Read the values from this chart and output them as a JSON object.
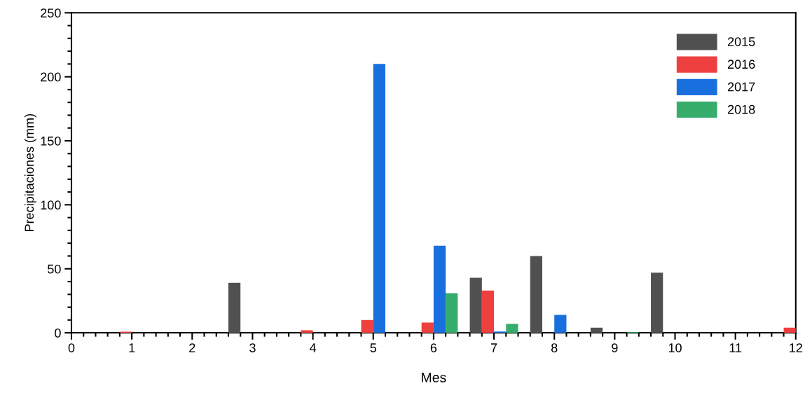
{
  "chart_data": {
    "type": "bar",
    "xlabel": "Mes",
    "ylabel": "Precipitaciones (mm)",
    "x": [
      1,
      2,
      3,
      4,
      5,
      6,
      7,
      8,
      9,
      10,
      11,
      12
    ],
    "series": [
      {
        "name": "2015",
        "color": "#505050",
        "values": [
          0,
          0,
          39,
          0,
          0,
          0,
          43,
          60,
          4,
          47,
          0,
          0
        ]
      },
      {
        "name": "2016",
        "color": "#ef4040",
        "values": [
          0.8,
          0,
          0,
          2,
          10,
          8,
          33,
          0,
          0,
          0,
          0,
          4
        ]
      },
      {
        "name": "2017",
        "color": "#1a6fdf",
        "values": [
          0,
          0,
          0,
          0,
          210,
          68,
          1,
          14,
          0,
          0,
          0,
          0
        ]
      },
      {
        "name": "2018",
        "color": "#37ad6b",
        "values": [
          0,
          0,
          0,
          0,
          0,
          31,
          7,
          0,
          0.5,
          0,
          0,
          0
        ]
      }
    ],
    "xlim": [
      0,
      12
    ],
    "xticks": [
      0,
      1,
      2,
      3,
      4,
      5,
      6,
      7,
      8,
      9,
      10,
      11,
      12
    ],
    "ylim": [
      0,
      250
    ],
    "yticks": [
      0,
      50,
      100,
      150,
      200,
      250
    ],
    "grid": false,
    "legend": "top right"
  }
}
